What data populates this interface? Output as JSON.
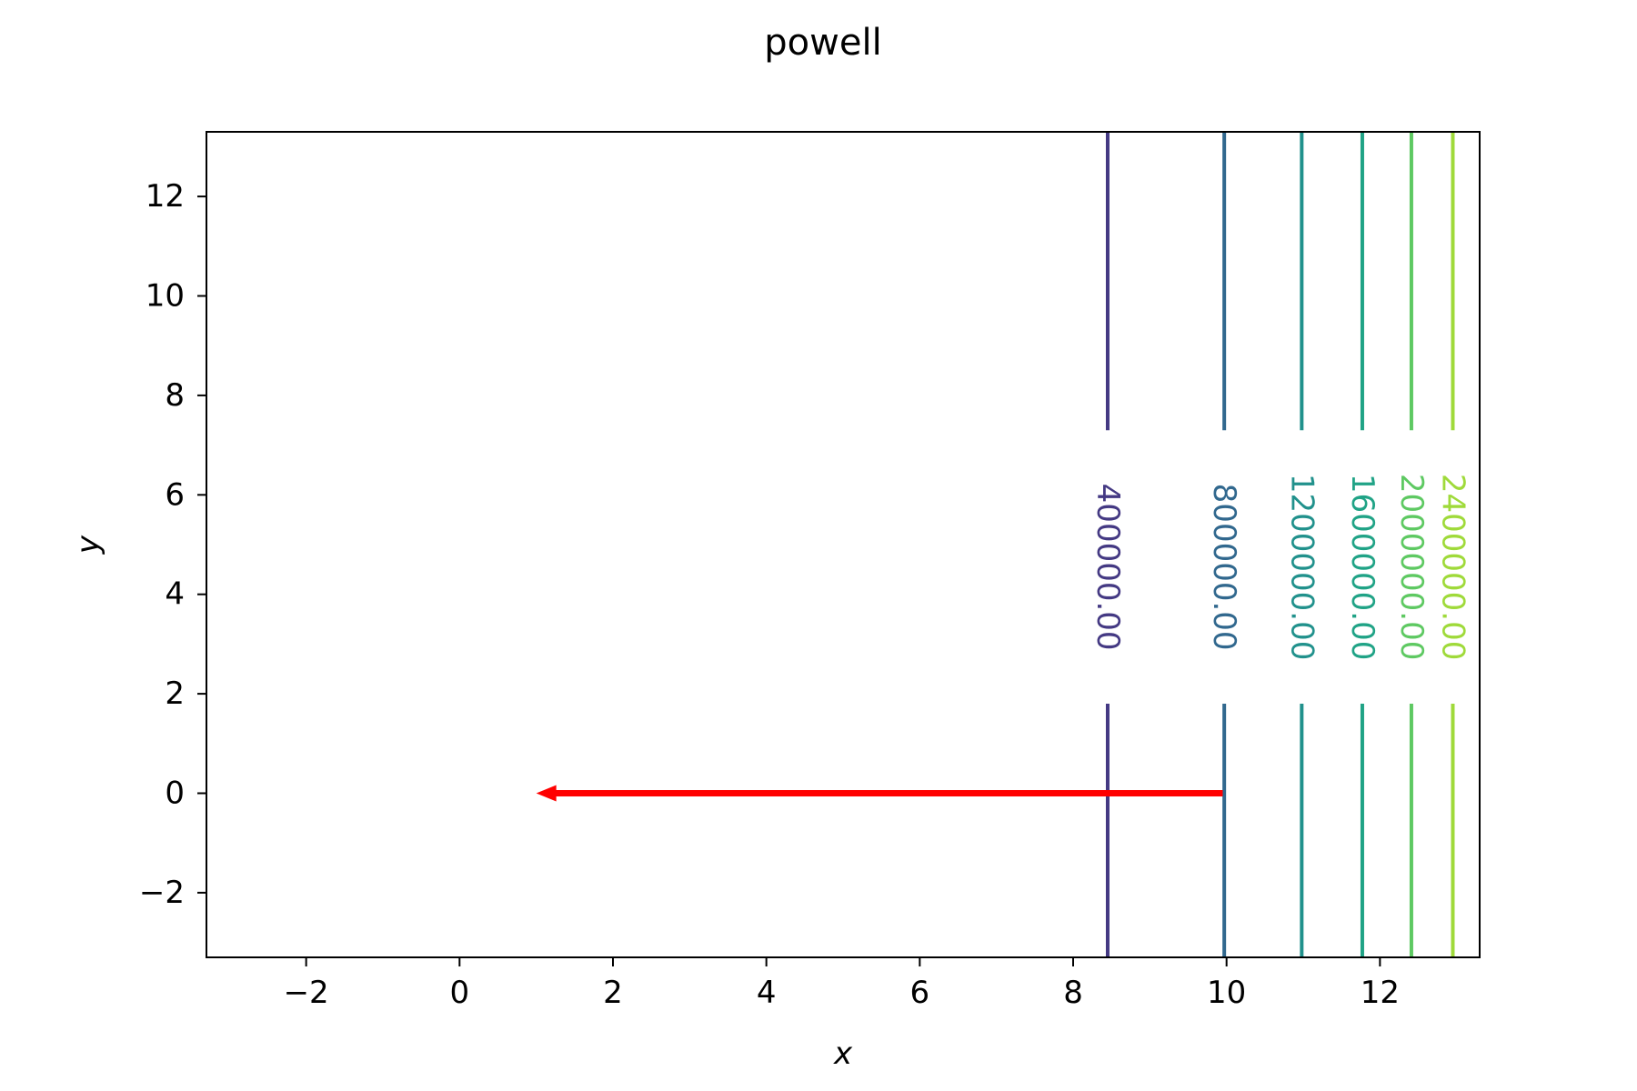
{
  "chart_data": {
    "type": "contour",
    "title": "powell",
    "xlabel": "x",
    "ylabel": "y",
    "xlim": [
      -3.3,
      13.3
    ],
    "ylim": [
      -3.3,
      13.3
    ],
    "xticks": [
      -2,
      0,
      2,
      4,
      6,
      8,
      10,
      12
    ],
    "yticks": [
      -2,
      0,
      2,
      4,
      6,
      8,
      10,
      12
    ],
    "xtick_labels": [
      "−2",
      "0",
      "2",
      "4",
      "6",
      "8",
      "10",
      "12"
    ],
    "ytick_labels": [
      "−2",
      "0",
      "2",
      "4",
      "6",
      "8",
      "10",
      "12"
    ],
    "grid": false,
    "contours": [
      {
        "level": 400000,
        "label": "400000.00",
        "x": 8.45,
        "color": "#443983"
      },
      {
        "level": 800000,
        "label": "800000.00",
        "x": 9.97,
        "color": "#31688e"
      },
      {
        "level": 1200000,
        "label": "1200000.00",
        "x": 10.98,
        "color": "#21918c"
      },
      {
        "level": 1600000,
        "label": "1600000.00",
        "x": 11.77,
        "color": "#20a386"
      },
      {
        "level": 2000000,
        "label": "2000000.00",
        "x": 12.41,
        "color": "#5ec962"
      },
      {
        "level": 2400000,
        "label": "2400000.00",
        "x": 12.95,
        "color": "#9fda3a"
      }
    ],
    "label_y_range": [
      1.8,
      7.3
    ],
    "arrow": {
      "from": [
        9.95,
        0
      ],
      "to": [
        1.0,
        0
      ],
      "color": "#ff0000"
    }
  }
}
